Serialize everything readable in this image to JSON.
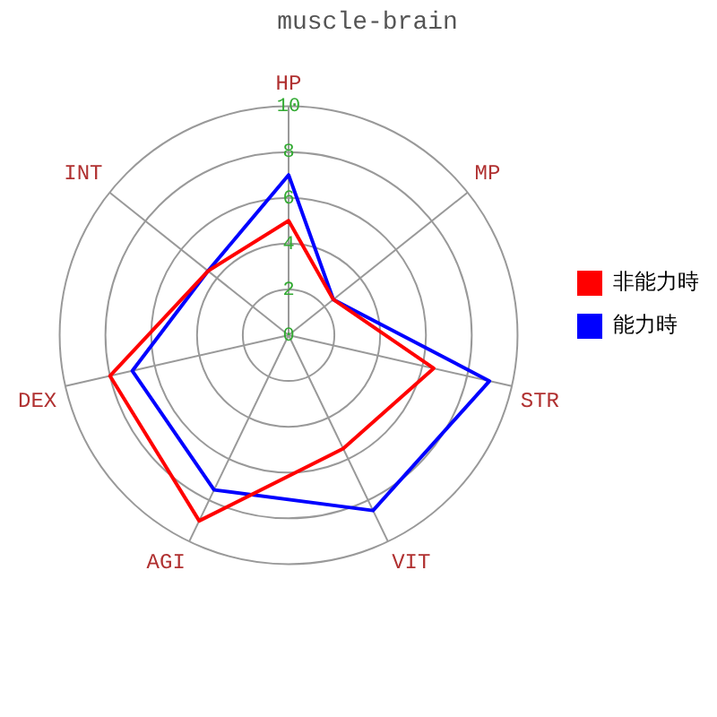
{
  "chart_data": {
    "type": "radar",
    "title": "muscle-brain",
    "categories": [
      "HP",
      "MP",
      "STR",
      "VIT",
      "AGI",
      "DEX",
      "INT"
    ],
    "series": [
      {
        "name": "非能力時",
        "color": "#ff0000",
        "values": [
          5,
          2.5,
          6.5,
          5.5,
          9,
          8,
          4.5
        ]
      },
      {
        "name": "能力時",
        "color": "#0000ff",
        "values": [
          7,
          2.5,
          9,
          8.5,
          7.5,
          7,
          4.5
        ]
      }
    ],
    "ylim": [
      0,
      10
    ],
    "yticks": [
      0,
      2,
      4,
      6,
      8,
      10
    ],
    "grid": true,
    "legend": "right",
    "marker": "none",
    "line_style": "solid"
  }
}
